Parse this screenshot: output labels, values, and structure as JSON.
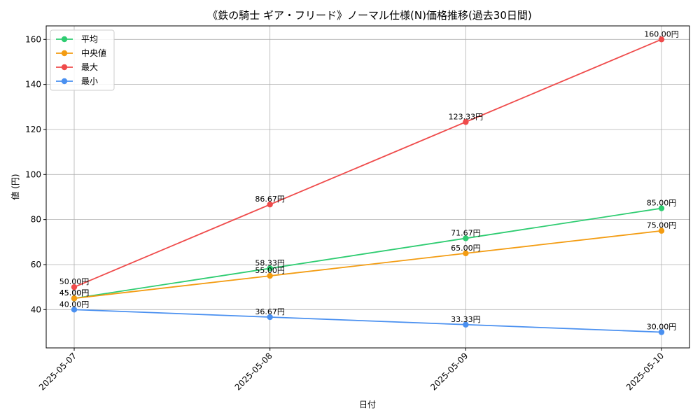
{
  "chart_data": {
    "type": "line",
    "title": "《鉄の騎士 ギア・フリード》ノーマル仕様(N)価格推移(過去30日間)",
    "xlabel": "日付",
    "ylabel": "値 (円)",
    "categories": [
      "2025-05-07",
      "2025-05-08",
      "2025-05-09",
      "2025-05-10"
    ],
    "ylim": [
      23,
      166
    ],
    "yticks": [
      40,
      60,
      80,
      100,
      120,
      140,
      160
    ],
    "grid": true,
    "legend_position": "top-left",
    "series": [
      {
        "name": "平均",
        "color": "#2ecc71",
        "values": [
          45.0,
          58.33,
          71.67,
          85.0
        ],
        "labels": [
          "45.00円",
          "58.33円",
          "71.67円",
          "85.00円"
        ]
      },
      {
        "name": "中央値",
        "color": "#f39c12",
        "values": [
          45.0,
          55.0,
          65.0,
          75.0
        ],
        "labels": [
          "45.00円",
          "55.00円",
          "65.00円",
          "75.00円"
        ]
      },
      {
        "name": "最大",
        "color": "#ef4b4b",
        "values": [
          50.0,
          86.67,
          123.33,
          160.0
        ],
        "labels": [
          "50.00円",
          "86.67円",
          "123.33円",
          "160.00円"
        ]
      },
      {
        "name": "最小",
        "color": "#4a90f0",
        "values": [
          40.0,
          36.67,
          33.33,
          30.0
        ],
        "labels": [
          "40.00円",
          "36.67円",
          "33.33円",
          "30.00円"
        ]
      }
    ]
  }
}
